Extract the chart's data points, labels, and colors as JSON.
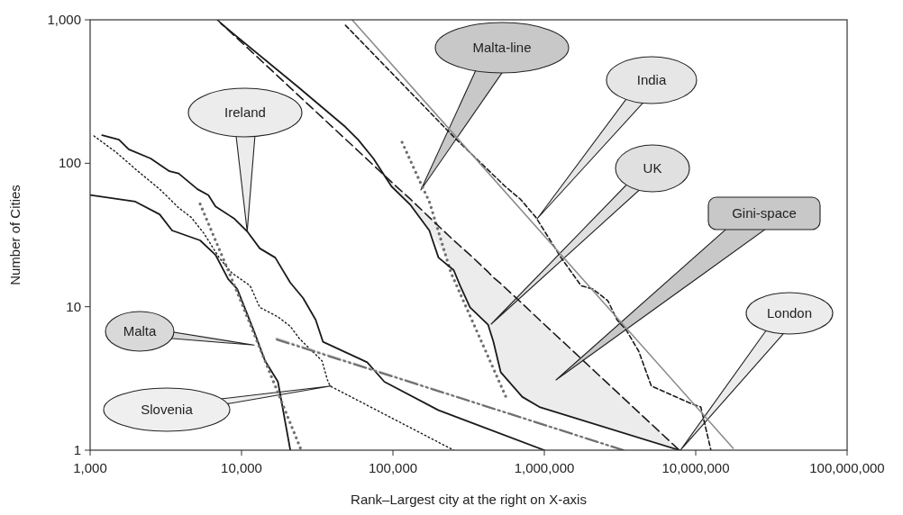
{
  "chart_data": {
    "type": "line",
    "log": "xy",
    "xlabel": "Rank–Largest city at the right on X-axis",
    "ylabel": "Number of Cities",
    "xlim": [
      1000,
      100000000
    ],
    "ylim": [
      1,
      1000
    ],
    "xticks": [
      {
        "value": 1000,
        "label": "1,000"
      },
      {
        "value": 10000,
        "label": "10,000"
      },
      {
        "value": 100000,
        "label": "100,000"
      },
      {
        "value": 1000000,
        "label": "1,000,000"
      },
      {
        "value": 10000000,
        "label": "10,000,000"
      },
      {
        "value": 100000000,
        "label": "100,000,000"
      }
    ],
    "yticks": [
      1,
      10,
      100,
      {
        "value": 1000,
        "label": "1,000"
      }
    ],
    "series": [
      {
        "color": "#1a1a1a",
        "line_style": "solid",
        "x": [
          1000,
          1990,
          2880,
          3480,
          5330,
          6730,
          8160,
          9360,
          12000,
          14300,
          17400,
          21000
        ],
        "values": [
          60,
          54,
          44,
          34,
          29,
          23,
          15.6,
          13.3,
          6.9,
          4.2,
          3.0,
          1
        ]
      },
      {
        "color": "#1a1a1a",
        "line_style": "solid",
        "x": [
          1200,
          1550,
          1800,
          2510,
          3340,
          3840,
          5120,
          6040,
          6730,
          8990,
          10900,
          13200,
          16700,
          21000,
          25500,
          30900,
          34500,
          67600,
          87800,
          200000,
          1000000
        ],
        "values": [
          157,
          146,
          125,
          108,
          88,
          85,
          66,
          60,
          50,
          41,
          33.5,
          25.5,
          22,
          14.7,
          11.5,
          8.1,
          5.7,
          4.1,
          3.0,
          1.9,
          1
        ]
      },
      {
        "color": "#1a1a1a",
        "line_style": "dotted",
        "x": [
          1060,
          1490,
          2070,
          2880,
          3840,
          4650,
          5640,
          7110,
          8630,
          11400,
          13200,
          17400,
          21000,
          24100,
          34000,
          36900,
          38500,
          252000
        ],
        "values": [
          155,
          119,
          88,
          66,
          49,
          42,
          32.5,
          22,
          17.2,
          14,
          9.9,
          8.5,
          7.3,
          6.0,
          4.2,
          3.1,
          2.8,
          1
        ]
      },
      {
        "color": "#6e6e6e",
        "line_style": "dotted",
        "x": [
          5330,
          8630,
          24800
        ],
        "values": [
          52,
          15.6,
          1
        ]
      },
      {
        "color": "#6e6e6e",
        "line_style": "dotted",
        "x": [
          115000,
          154000,
          174000,
          242000,
          558000
        ],
        "values": [
          140,
          71,
          54,
          17.2,
          2.35
        ]
      },
      {
        "color": "#b5b5b5",
        "line_style": "dashed",
        "x": [
          17000,
          3300000
        ],
        "values": [
          6.0,
          1.0
        ]
      },
      {
        "color": "#6e6e6e",
        "line_style": "dashed",
        "x": [
          17100,
          3330000
        ],
        "values": [
          5.9,
          1.0
        ]
      },
      {
        "color": "#1a1a1a",
        "line_style": "solid",
        "x": [
          7310,
          23800,
          48600,
          58900,
          74300,
          97800,
          131000,
          174000,
          200000,
          252000,
          278000,
          323000,
          425000,
          461000,
          515000,
          716000,
          929000,
          7800000
        ],
        "values": [
          944,
          338,
          179,
          146,
          108,
          69,
          51,
          34,
          22,
          18,
          14,
          9.9,
          7.5,
          5.7,
          3.5,
          2.35,
          2.0,
          1
        ]
      },
      {
        "color": "#1a1a1a",
        "line_style": "dashed",
        "x": [
          6920,
          74300,
          97800,
          131000,
          174000,
          252000,
          323000,
          425000,
          461000,
          515000,
          716000,
          929000,
          7800000
        ],
        "values": [
          1000,
          97,
          74,
          56,
          42,
          29,
          23,
          17.5,
          16,
          14.5,
          10.5,
          8.1,
          1
        ],
        "lower": [
          null,
          97,
          69,
          51,
          34,
          18,
          9.9,
          7.5,
          5.7,
          3.5,
          2.35,
          2.0,
          1
        ],
        "upper": [
          null,
          97,
          74,
          56,
          42,
          29,
          23,
          17.5,
          16,
          14.5,
          10.5,
          8.1,
          1
        ]
      },
      {
        "color": "#1a1a1a",
        "line_style": "dashed",
        "x": [
          48600,
          252000,
          551000,
          697000,
          879000,
          1290000,
          1750000,
          2090000,
          2630000,
          3020000,
          3470000,
          4200000,
          5090000,
          9440000,
          10800000,
          12600000
        ],
        "values": [
          916,
          153,
          69,
          56,
          42,
          22,
          14,
          13.3,
          11,
          8.1,
          6.9,
          4.9,
          2.8,
          2.1,
          2.0,
          1
        ]
      },
      {
        "color": "#8c8c8c",
        "line_style": "solid",
        "x": [
          53700,
          17700000
        ],
        "values": [
          1000,
          1.03
        ]
      }
    ],
    "annotations": [
      {
        "text": "Ireland",
        "x": 10900,
        "y": 33.5
      },
      {
        "text": "Malta",
        "x": 12100,
        "y": 5.4
      },
      {
        "text": "Slovenia",
        "x": 38900,
        "y": 2.8
      },
      "Malta-line",
      "India",
      "UK",
      "Gini-space",
      "London"
    ]
  }
}
